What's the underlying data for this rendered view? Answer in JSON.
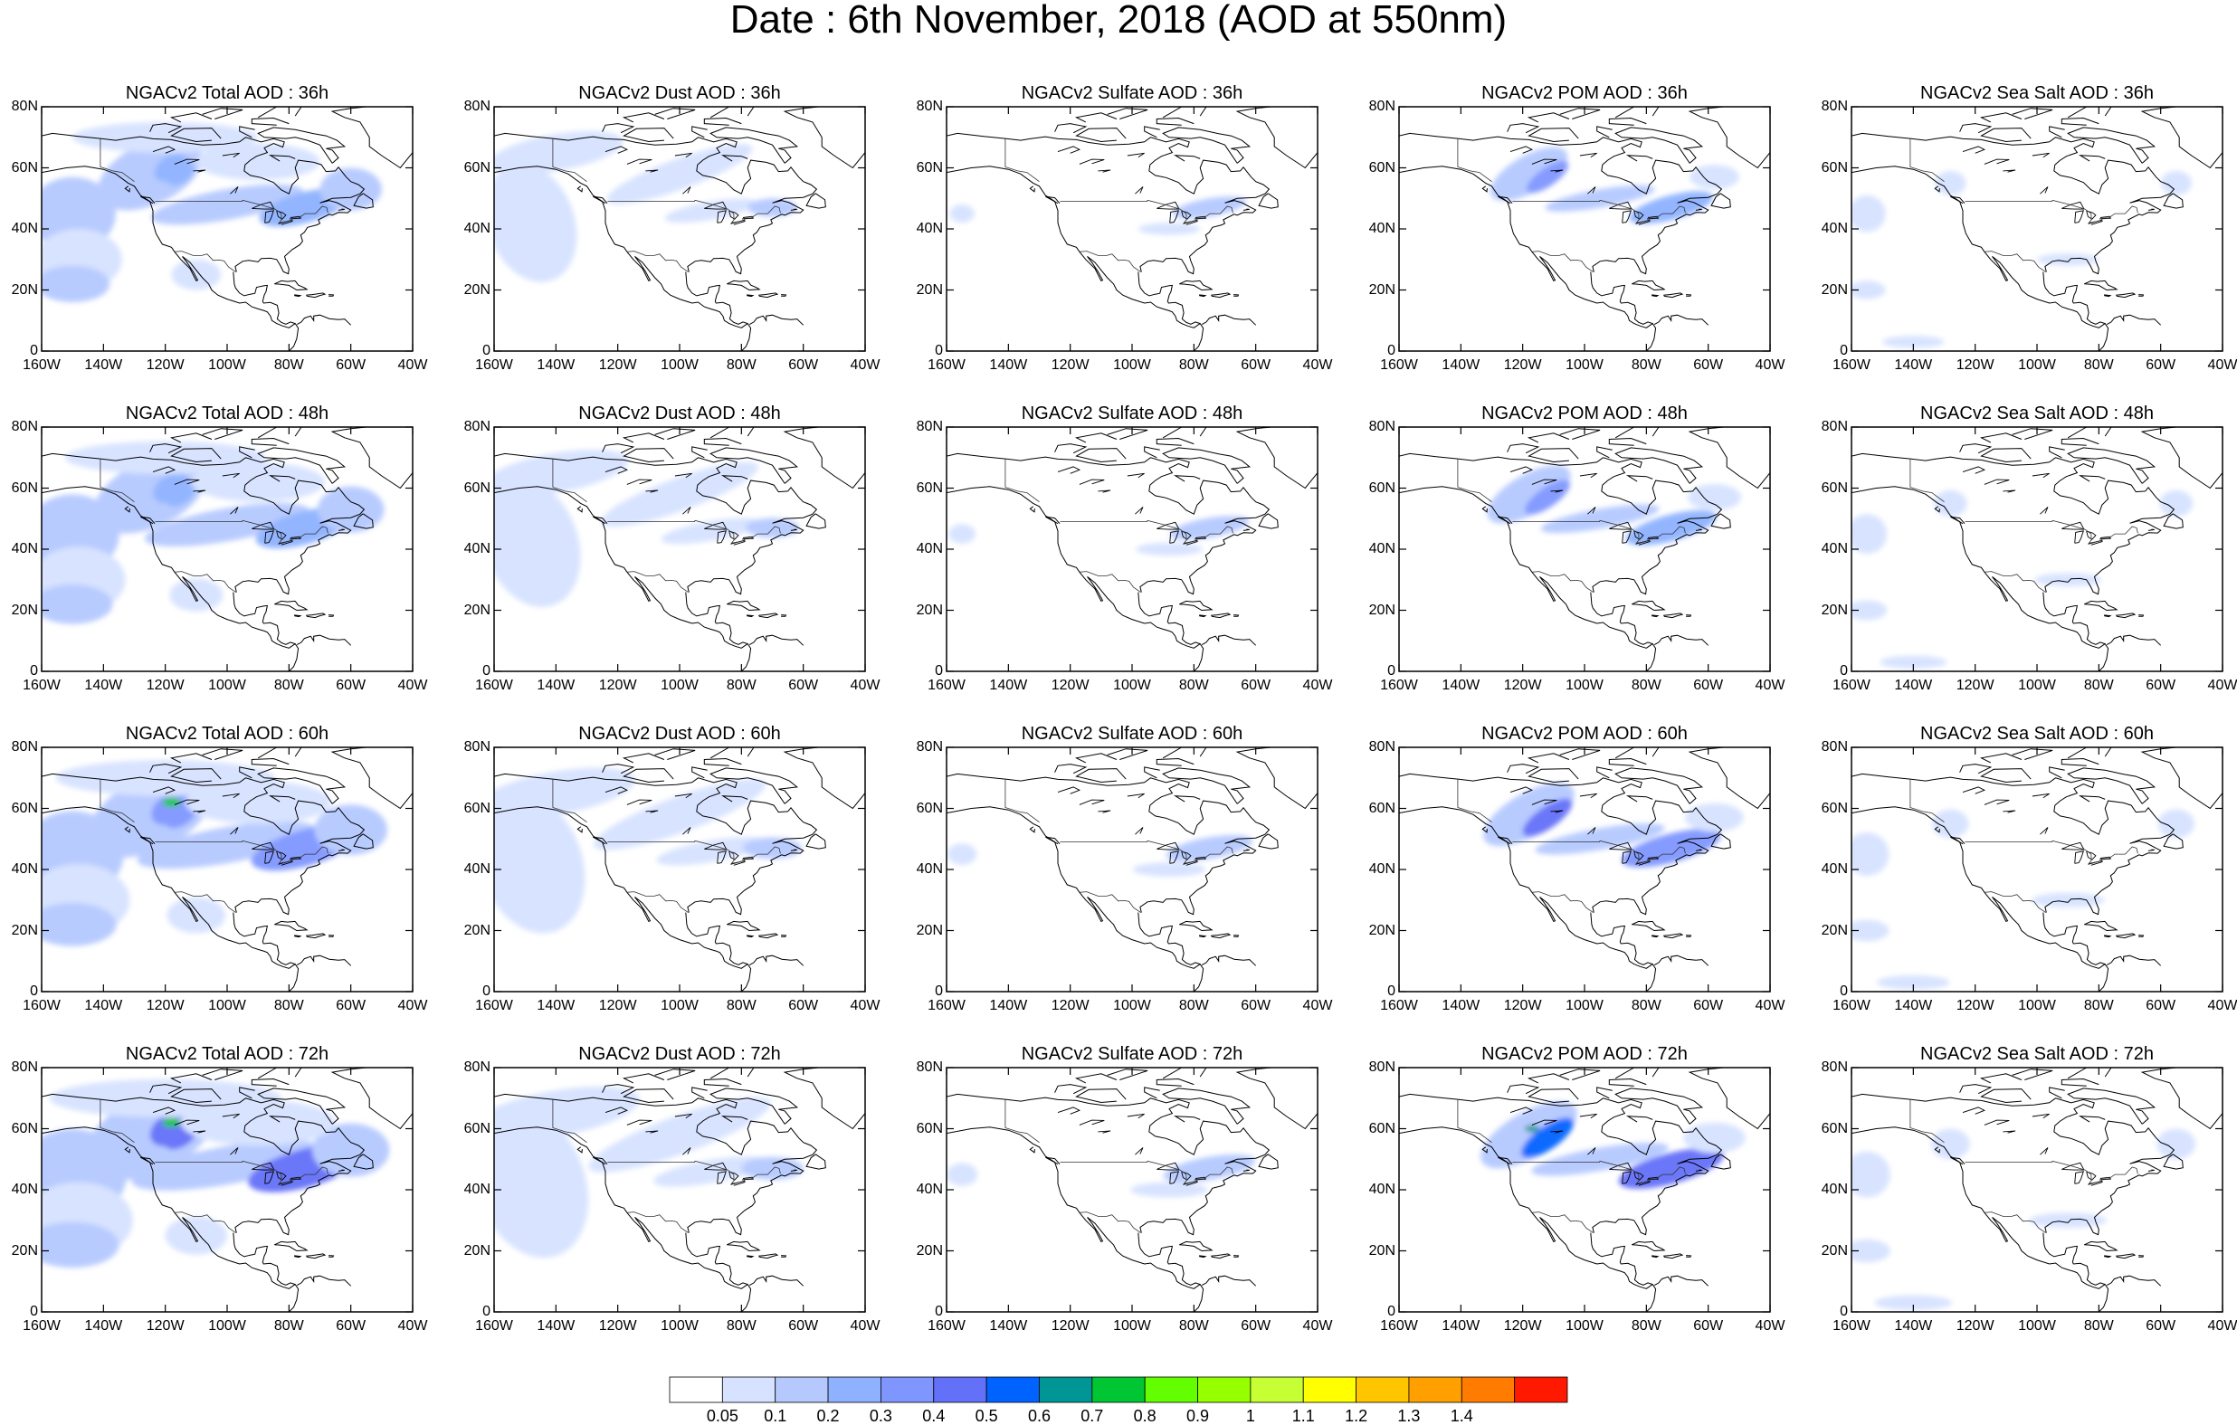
{
  "title": "Date : 6th November, 2018 (AOD at 550nm)",
  "row_hours": [
    "36h",
    "48h",
    "60h",
    "72h"
  ],
  "panel_titles": [
    [
      "NGACv2 Total AOD : 36h",
      "NGACv2 Dust AOD : 36h",
      "NGACv2 Sulfate AOD : 36h",
      "NGACv2 POM AOD : 36h",
      "NGACv2 Sea Salt AOD : 36h"
    ],
    [
      "NGACv2 Total AOD : 48h",
      "NGACv2 Dust AOD : 48h",
      "NGACv2 Sulfate AOD : 48h",
      "NGACv2 POM AOD : 48h",
      "NGACv2 Sea Salt AOD : 48h"
    ],
    [
      "NGACv2 Total AOD : 60h",
      "NGACv2 Dust AOD : 60h",
      "NGACv2 Sulfate AOD : 60h",
      "NGACv2 POM AOD : 60h",
      "NGACv2 Sea Salt AOD : 60h"
    ],
    [
      "NGACv2 Total AOD : 72h",
      "NGACv2 Dust AOD : 72h",
      "NGACv2 Sulfate AOD : 72h",
      "NGACv2 POM AOD : 72h",
      "NGACv2 Sea Salt  AOD : 72h"
    ]
  ],
  "map_extent": {
    "lon": [
      -160,
      -40
    ],
    "lat": [
      0,
      80
    ]
  },
  "x_ticks": [
    "160W",
    "140W",
    "120W",
    "100W",
    "80W",
    "60W",
    "40W"
  ],
  "y_ticks": [
    "0",
    "20N",
    "40N",
    "60N",
    "80N"
  ],
  "colorbar": {
    "labels": [
      "0.05",
      "0.1",
      "0.2",
      "0.3",
      "0.4",
      "0.5",
      "0.6",
      "0.7",
      "0.8",
      "0.9",
      "1",
      "1.1",
      "1.2",
      "1.3",
      "1.4"
    ],
    "colors": [
      "#ffffff",
      "#d6e2ff",
      "#b5c9ff",
      "#8eb2ff",
      "#7f96ff",
      "#6370f8",
      "#0063ff",
      "#009696",
      "#00c633",
      "#63ff00",
      "#96ff00",
      "#c6ff33",
      "#ffff00",
      "#ffc600",
      "#ffa000",
      "#ff7c00",
      "#ff1900"
    ]
  }
}
